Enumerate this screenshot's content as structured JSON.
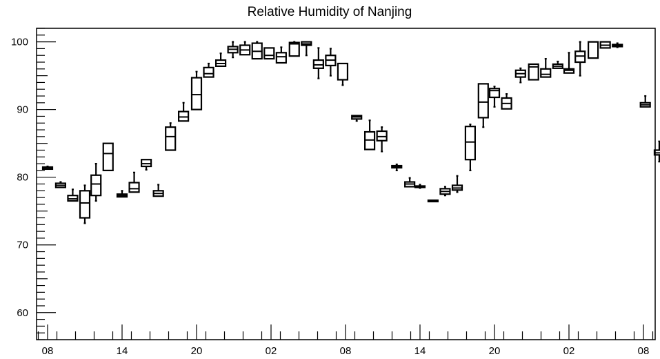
{
  "chart_data": {
    "type": "box",
    "title": "Relative Humidity of Nanjing",
    "xlabel": "",
    "ylabel": "",
    "ylim": [
      56,
      102
    ],
    "yticks": [
      60,
      70,
      80,
      90,
      100
    ],
    "xticks": [
      {
        "label": "08",
        "pos": 0
      },
      {
        "label": "14",
        "pos": 4
      },
      {
        "label": "20",
        "pos": 8
      },
      {
        "label": "02",
        "pos": 12
      },
      {
        "label": "08",
        "pos": 16
      },
      {
        "label": "14",
        "pos": 20
      },
      {
        "label": "20",
        "pos": 24
      },
      {
        "label": "02",
        "pos": 28
      },
      {
        "label": "08",
        "pos": 32
      }
    ],
    "boxes": [
      {
        "pos": 0.0,
        "q1": 81.2,
        "median": 81.4,
        "q3": 81.5,
        "min": 81.2,
        "max": 81.6
      },
      {
        "pos": 0.7,
        "q1": 78.5,
        "median": 78.8,
        "q3": 79.1,
        "min": 78.5,
        "max": 79.3
      },
      {
        "pos": 1.35,
        "q1": 76.5,
        "median": 76.8,
        "q3": 77.3,
        "min": 76.5,
        "max": 78.2
      },
      {
        "pos": 2.0,
        "q1": 74.0,
        "median": 76.2,
        "q3": 78.0,
        "min": 73.2,
        "max": 78.8
      },
      {
        "pos": 2.6,
        "q1": 77.3,
        "median": 79.0,
        "q3": 80.3,
        "min": 76.5,
        "max": 82.0
      },
      {
        "pos": 3.25,
        "q1": 81.0,
        "median": 83.5,
        "q3": 85.0,
        "min": 81.0,
        "max": 85.0
      },
      {
        "pos": 4.0,
        "q1": 77.1,
        "median": 77.3,
        "q3": 77.5,
        "min": 77.1,
        "max": 78.0
      },
      {
        "pos": 4.65,
        "q1": 77.8,
        "median": 78.3,
        "q3": 79.2,
        "min": 77.8,
        "max": 80.7
      },
      {
        "pos": 5.3,
        "q1": 81.6,
        "median": 82.0,
        "q3": 82.6,
        "min": 81.1,
        "max": 82.6
      },
      {
        "pos": 5.95,
        "q1": 77.2,
        "median": 77.6,
        "q3": 78.0,
        "min": 77.2,
        "max": 78.9
      },
      {
        "pos": 6.6,
        "q1": 84.0,
        "median": 86.0,
        "q3": 87.4,
        "min": 84.0,
        "max": 88.0
      },
      {
        "pos": 7.3,
        "q1": 88.3,
        "median": 88.9,
        "q3": 89.7,
        "min": 88.3,
        "max": 91.0
      },
      {
        "pos": 8.0,
        "q1": 90.0,
        "median": 92.2,
        "q3": 94.7,
        "min": 90.0,
        "max": 95.6
      },
      {
        "pos": 8.65,
        "q1": 94.8,
        "median": 95.3,
        "q3": 96.2,
        "min": 94.8,
        "max": 96.8
      },
      {
        "pos": 9.3,
        "q1": 96.4,
        "median": 96.8,
        "q3": 97.3,
        "min": 96.4,
        "max": 98.3
      },
      {
        "pos": 9.95,
        "q1": 98.4,
        "median": 98.9,
        "q3": 99.3,
        "min": 97.7,
        "max": 100.0
      },
      {
        "pos": 10.6,
        "q1": 98.1,
        "median": 98.8,
        "q3": 99.5,
        "min": 98.1,
        "max": 100.0
      },
      {
        "pos": 11.25,
        "q1": 97.5,
        "median": 98.6,
        "q3": 99.8,
        "min": 97.5,
        "max": 100.0
      },
      {
        "pos": 11.9,
        "q1": 97.5,
        "median": 98.0,
        "q3": 99.1,
        "min": 97.5,
        "max": 99.1
      },
      {
        "pos": 12.55,
        "q1": 96.9,
        "median": 97.8,
        "q3": 98.4,
        "min": 96.9,
        "max": 99.2
      },
      {
        "pos": 13.25,
        "q1": 97.9,
        "median": 99.7,
        "q3": 99.9,
        "min": 97.9,
        "max": 100.0
      },
      {
        "pos": 13.9,
        "q1": 99.5,
        "median": 99.7,
        "q3": 100.0,
        "min": 98.0,
        "max": 100.0
      },
      {
        "pos": 14.55,
        "q1": 96.1,
        "median": 96.6,
        "q3": 97.3,
        "min": 94.6,
        "max": 99.1
      },
      {
        "pos": 15.2,
        "q1": 96.5,
        "median": 97.3,
        "q3": 98.0,
        "min": 95.0,
        "max": 99.0
      },
      {
        "pos": 15.85,
        "q1": 94.4,
        "median": 96.8,
        "q3": 96.8,
        "min": 93.6,
        "max": 96.8
      },
      {
        "pos": 16.6,
        "q1": 88.6,
        "median": 88.9,
        "q3": 89.1,
        "min": 88.3,
        "max": 89.1
      },
      {
        "pos": 17.3,
        "q1": 84.1,
        "median": 85.5,
        "q3": 86.7,
        "min": 84.1,
        "max": 88.4
      },
      {
        "pos": 17.95,
        "q1": 85.4,
        "median": 86.0,
        "q3": 86.8,
        "min": 83.8,
        "max": 87.4
      },
      {
        "pos": 18.75,
        "q1": 81.4,
        "median": 81.6,
        "q3": 81.7,
        "min": 81.0,
        "max": 81.9
      },
      {
        "pos": 19.45,
        "q1": 78.6,
        "median": 79.0,
        "q3": 79.3,
        "min": 78.6,
        "max": 79.9
      },
      {
        "pos": 20.0,
        "q1": 78.5,
        "median": 78.6,
        "q3": 78.7,
        "min": 78.4,
        "max": 78.9
      },
      {
        "pos": 20.7,
        "q1": 76.4,
        "median": 76.5,
        "q3": 76.6,
        "min": 76.4,
        "max": 76.6
      },
      {
        "pos": 21.35,
        "q1": 77.5,
        "median": 77.9,
        "q3": 78.3,
        "min": 77.3,
        "max": 78.6
      },
      {
        "pos": 22.0,
        "q1": 78.1,
        "median": 78.4,
        "q3": 78.8,
        "min": 77.8,
        "max": 80.2
      },
      {
        "pos": 22.7,
        "q1": 82.6,
        "median": 85.2,
        "q3": 87.5,
        "min": 81.0,
        "max": 87.8
      },
      {
        "pos": 23.4,
        "q1": 88.8,
        "median": 91.1,
        "q3": 93.8,
        "min": 87.4,
        "max": 93.8
      },
      {
        "pos": 24.0,
        "q1": 91.8,
        "median": 92.8,
        "q3": 93.1,
        "min": 90.4,
        "max": 93.4
      },
      {
        "pos": 24.65,
        "q1": 90.1,
        "median": 90.9,
        "q3": 91.7,
        "min": 90.1,
        "max": 92.3
      },
      {
        "pos": 25.4,
        "q1": 94.8,
        "median": 95.3,
        "q3": 95.8,
        "min": 94.0,
        "max": 96.1
      },
      {
        "pos": 26.1,
        "q1": 94.4,
        "median": 96.3,
        "q3": 96.7,
        "min": 94.4,
        "max": 96.7
      },
      {
        "pos": 26.75,
        "q1": 94.8,
        "median": 95.2,
        "q3": 96.0,
        "min": 94.8,
        "max": 97.5
      },
      {
        "pos": 27.4,
        "q1": 96.1,
        "median": 96.4,
        "q3": 96.7,
        "min": 96.1,
        "max": 97.1
      },
      {
        "pos": 28.0,
        "q1": 95.4,
        "median": 95.8,
        "q3": 96.0,
        "min": 95.4,
        "max": 98.4
      },
      {
        "pos": 28.6,
        "q1": 97.0,
        "median": 97.9,
        "q3": 98.6,
        "min": 95.0,
        "max": 100.0
      },
      {
        "pos": 29.3,
        "q1": 97.6,
        "median": 100.0,
        "q3": 100.0,
        "min": 97.6,
        "max": 100.0
      },
      {
        "pos": 29.95,
        "q1": 99.1,
        "median": 99.5,
        "q3": 100.0,
        "min": 99.1,
        "max": 100.0
      },
      {
        "pos": 30.6,
        "q1": 99.3,
        "median": 99.4,
        "q3": 99.6,
        "min": 99.2,
        "max": 99.8
      },
      {
        "pos": 32.1,
        "q1": 90.4,
        "median": 90.7,
        "q3": 91.0,
        "min": 90.4,
        "max": 92.0
      },
      {
        "pos": 32.85,
        "q1": 83.3,
        "median": 83.6,
        "q3": 84.0,
        "min": 82.3,
        "max": 85.3
      }
    ]
  }
}
